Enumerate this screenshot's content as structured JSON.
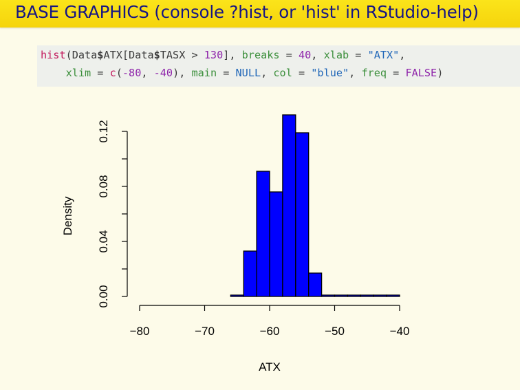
{
  "slide": {
    "title": "BASE GRAPHICS (console ?hist, or 'hist' in RStudio-help)"
  },
  "code": {
    "line1": [
      {
        "t": "hist",
        "c": "fn"
      },
      {
        "t": "(Data",
        "c": "plain"
      },
      {
        "t": "$",
        "c": "bold"
      },
      {
        "t": "ATX[Data",
        "c": "plain"
      },
      {
        "t": "$",
        "c": "bold"
      },
      {
        "t": "TASX > ",
        "c": "plain"
      },
      {
        "t": "130",
        "c": "num"
      },
      {
        "t": "], ",
        "c": "plain"
      },
      {
        "t": "breaks",
        "c": "arg"
      },
      {
        "t": " = ",
        "c": "plain"
      },
      {
        "t": "40",
        "c": "num"
      },
      {
        "t": ", ",
        "c": "plain"
      },
      {
        "t": "xlab",
        "c": "arg"
      },
      {
        "t": " = ",
        "c": "plain"
      },
      {
        "t": "\"ATX\"",
        "c": "str"
      },
      {
        "t": ",",
        "c": "plain"
      }
    ],
    "line2": [
      {
        "t": "    xlim",
        "c": "arg"
      },
      {
        "t": " = ",
        "c": "plain"
      },
      {
        "t": "c",
        "c": "fn"
      },
      {
        "t": "(",
        "c": "plain"
      },
      {
        "t": "-80",
        "c": "num"
      },
      {
        "t": ", ",
        "c": "plain"
      },
      {
        "t": "-40",
        "c": "num"
      },
      {
        "t": "), ",
        "c": "plain"
      },
      {
        "t": "main",
        "c": "arg"
      },
      {
        "t": " = ",
        "c": "plain"
      },
      {
        "t": "NULL",
        "c": "str"
      },
      {
        "t": ", ",
        "c": "plain"
      },
      {
        "t": "col",
        "c": "arg"
      },
      {
        "t": " = ",
        "c": "plain"
      },
      {
        "t": "\"blue\"",
        "c": "str"
      },
      {
        "t": ", ",
        "c": "plain"
      },
      {
        "t": "freq",
        "c": "arg"
      },
      {
        "t": " = ",
        "c": "plain"
      },
      {
        "t": "FALSE",
        "c": "kw"
      },
      {
        "t": ")",
        "c": "plain"
      }
    ]
  },
  "colors": {
    "bar_fill": "#0000ff",
    "title_text": "#151585",
    "title_bg": "#f9de14",
    "background": "#fdfbe9"
  },
  "chart_data": {
    "type": "bar",
    "xlabel": "ATX",
    "ylabel": "Density",
    "xlim": [
      -80,
      -40
    ],
    "ylim": [
      0,
      0.13
    ],
    "xticks": [
      -80,
      -70,
      -60,
      -50,
      -40
    ],
    "yticks": [
      0.0,
      0.04,
      0.08,
      0.12
    ],
    "xtick_labels": [
      "−80",
      "−70",
      "−60",
      "−50",
      "−40"
    ],
    "ytick_labels": [
      "0.00",
      "0.04",
      "0.08",
      "0.12"
    ],
    "grid": false,
    "bin_edges": [
      -66,
      -64,
      -62,
      -60,
      -58,
      -56,
      -54,
      -52,
      -50,
      -48,
      -46,
      -44,
      -42,
      -40
    ],
    "values": [
      0.001,
      0.033,
      0.091,
      0.076,
      0.132,
      0.119,
      0.017,
      0.001,
      0.001,
      0.001,
      0.001,
      0.001,
      0.001
    ]
  }
}
